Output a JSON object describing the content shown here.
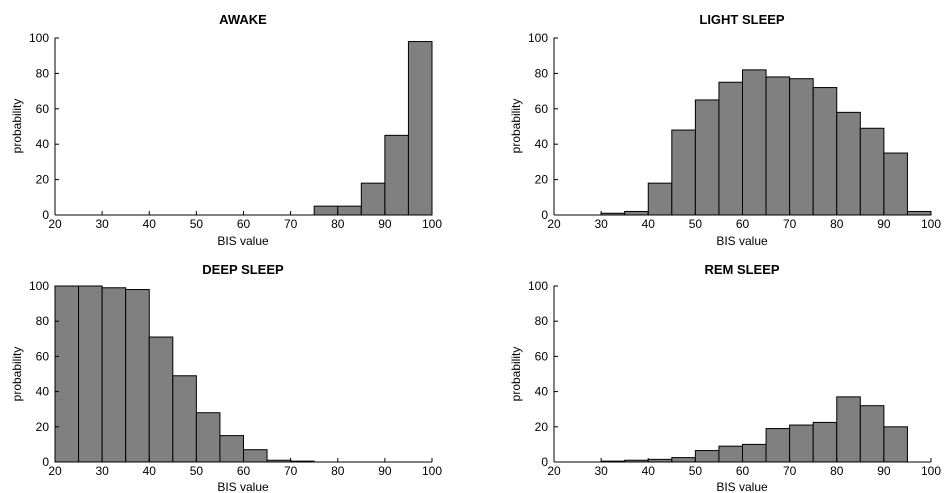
{
  "chart_data": [
    {
      "type": "bar",
      "title": "AWAKE",
      "xlabel": "BIS value",
      "ylabel": "probability",
      "xlim": [
        20,
        100
      ],
      "ylim": [
        0,
        100
      ],
      "xticks": [
        20,
        30,
        40,
        50,
        60,
        70,
        80,
        90,
        100
      ],
      "yticks": [
        0,
        20,
        40,
        60,
        80,
        100
      ],
      "bin_width": 5,
      "bins": [
        20,
        25,
        30,
        35,
        40,
        45,
        50,
        55,
        60,
        65,
        70,
        75,
        80,
        85,
        90,
        95
      ],
      "values": [
        0,
        0,
        0,
        0,
        0,
        0,
        0,
        0,
        0,
        0,
        0,
        5,
        5,
        18,
        45,
        98
      ]
    },
    {
      "type": "bar",
      "title": "LIGHT SLEEP",
      "xlabel": "BIS value",
      "ylabel": "probability",
      "xlim": [
        20,
        100
      ],
      "ylim": [
        0,
        100
      ],
      "xticks": [
        20,
        30,
        40,
        50,
        60,
        70,
        80,
        90,
        100
      ],
      "yticks": [
        0,
        20,
        40,
        60,
        80,
        100
      ],
      "bin_width": 5,
      "bins": [
        20,
        25,
        30,
        35,
        40,
        45,
        50,
        55,
        60,
        65,
        70,
        75,
        80,
        85,
        90,
        95
      ],
      "values": [
        0,
        0,
        1,
        2,
        18,
        48,
        65,
        75,
        82,
        78,
        77,
        72,
        58,
        49,
        35,
        2
      ]
    },
    {
      "type": "bar",
      "title": "DEEP SLEEP",
      "xlabel": "BIS value",
      "ylabel": "probability",
      "xlim": [
        20,
        100
      ],
      "ylim": [
        0,
        100
      ],
      "xticks": [
        20,
        30,
        40,
        50,
        60,
        70,
        80,
        90,
        100
      ],
      "yticks": [
        0,
        20,
        40,
        60,
        80,
        100
      ],
      "bin_width": 5,
      "bins": [
        20,
        25,
        30,
        35,
        40,
        45,
        50,
        55,
        60,
        65,
        70,
        75,
        80,
        85,
        90,
        95
      ],
      "values": [
        100,
        100,
        99,
        98,
        71,
        49,
        28,
        15,
        7,
        1,
        0.5,
        0,
        0,
        0,
        0,
        0
      ]
    },
    {
      "type": "bar",
      "title": "REM SLEEP",
      "xlabel": "BIS value",
      "ylabel": "probability",
      "xlim": [
        20,
        100
      ],
      "ylim": [
        0,
        100
      ],
      "xticks": [
        20,
        30,
        40,
        50,
        60,
        70,
        80,
        90,
        100
      ],
      "yticks": [
        0,
        20,
        40,
        60,
        80,
        100
      ],
      "bin_width": 5,
      "bins": [
        20,
        25,
        30,
        35,
        40,
        45,
        50,
        55,
        60,
        65,
        70,
        75,
        80,
        85,
        90,
        95
      ],
      "values": [
        0,
        0,
        0.5,
        1,
        1.5,
        2.5,
        6.5,
        9,
        10,
        19,
        21,
        22.5,
        37,
        32,
        20,
        0
      ]
    }
  ]
}
